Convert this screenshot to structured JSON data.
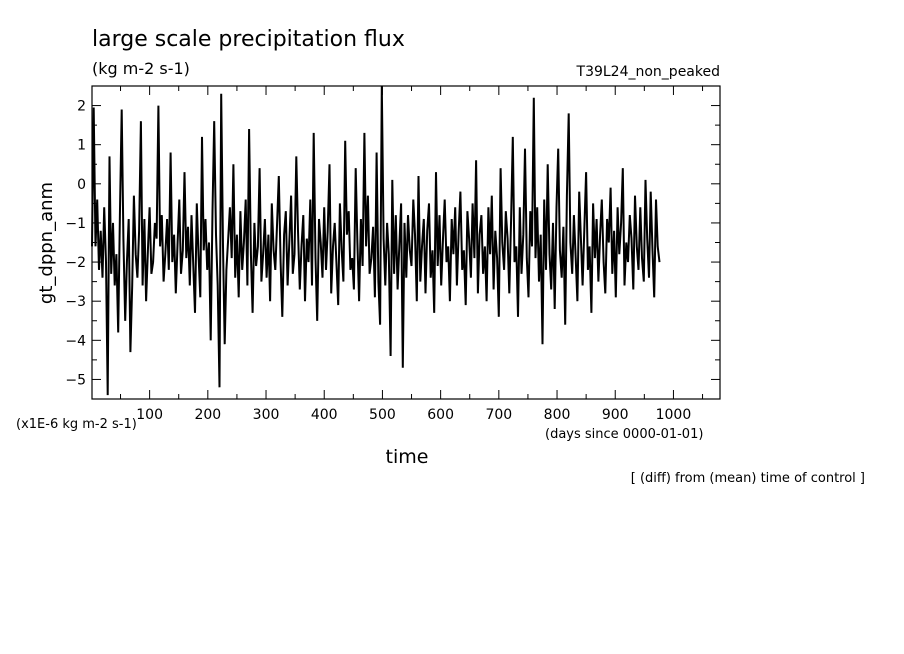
{
  "chart_data": {
    "type": "line",
    "title": "large scale precipitation flux",
    "subtitle": "(kg m-2 s-1)",
    "run_label": "T39L24_non_peaked",
    "ylabel": "gt_dppn_anm",
    "y_unit_note": "(x1E-6 kg m-2 s-1)",
    "xlabel": "time",
    "x_unit_note": "(days since 0000-01-01)",
    "footnote": "[ (diff) from (mean) time of control ]",
    "xlim": [
      1,
      1080
    ],
    "ylim": [
      -5.5,
      2.5
    ],
    "x_ticks": [
      100,
      200,
      300,
      400,
      500,
      600,
      700,
      800,
      900,
      1000
    ],
    "y_ticks": [
      2,
      1,
      0,
      -1,
      -2,
      -3,
      -4,
      -5
    ],
    "grid": false,
    "series": [
      {
        "x_start": 1,
        "x_step": 3,
        "values": [
          -1.6,
          1.95,
          -1.6,
          -0.4,
          -2.2,
          -1.2,
          -2.4,
          -0.6,
          -2.0,
          -5.4,
          0.7,
          -2.3,
          -1.0,
          -2.6,
          -1.8,
          -3.8,
          -0.8,
          1.9,
          -1.4,
          -3.5,
          -2.0,
          -0.9,
          -4.3,
          -2.6,
          -0.3,
          -1.8,
          -2.4,
          -1.2,
          1.6,
          -2.6,
          -0.9,
          -3.0,
          -1.7,
          -0.6,
          -2.3,
          -2.0,
          -1.0,
          -1.4,
          2.0,
          -1.6,
          -0.8,
          -2.5,
          -1.8,
          -0.9,
          -2.2,
          0.8,
          -2.0,
          -1.3,
          -2.8,
          -1.5,
          -0.4,
          -2.3,
          -1.7,
          0.3,
          -1.9,
          -1.1,
          -2.6,
          -0.8,
          -2.1,
          -3.3,
          -0.5,
          -1.8,
          -2.9,
          1.2,
          -1.7,
          -0.9,
          -2.2,
          -1.5,
          -4.0,
          -0.7,
          1.6,
          -1.3,
          -2.6,
          -5.2,
          2.3,
          -1.6,
          -4.1,
          -2.2,
          -1.4,
          -0.6,
          -1.9,
          0.5,
          -2.4,
          -1.3,
          -2.9,
          -0.7,
          -2.2,
          -1.5,
          -0.4,
          -2.6,
          1.4,
          -1.8,
          -3.3,
          -1.0,
          -2.1,
          -1.6,
          0.4,
          -2.5,
          -1.8,
          -0.9,
          -2.4,
          -1.3,
          -3.0,
          -0.5,
          -1.7,
          -2.2,
          -1.0,
          0.2,
          -2.0,
          -3.4,
          -1.3,
          -0.7,
          -2.6,
          -1.5,
          -0.3,
          -2.3,
          -1.8,
          0.7,
          -1.2,
          -2.7,
          -1.6,
          -0.8,
          -3.0,
          -1.4,
          -2.0,
          -0.4,
          -2.6,
          1.3,
          -1.9,
          -3.5,
          -0.9,
          -1.5,
          -2.4,
          -0.6,
          -2.2,
          -1.2,
          0.5,
          -2.8,
          -1.6,
          -1.0,
          -2.0,
          -3.1,
          -0.5,
          -1.7,
          -2.5,
          1.1,
          -1.3,
          -0.7,
          -2.2,
          -1.9,
          -2.7,
          0.4,
          -1.5,
          -3.0,
          -0.9,
          -2.1,
          1.3,
          -1.6,
          -0.3,
          -2.3,
          -1.9,
          -1.1,
          -2.9,
          0.8,
          -2.5,
          -3.6,
          2.5,
          -1.4,
          -2.6,
          -1.0,
          -1.8,
          -4.4,
          0.1,
          -2.3,
          -0.8,
          -2.7,
          -1.6,
          -0.5,
          -4.7,
          -1.0,
          -2.4,
          -0.8,
          -1.7,
          -2.1,
          -0.4,
          -1.3,
          -3.0,
          0.2,
          -2.5,
          -1.6,
          -0.9,
          -2.8,
          -1.2,
          -0.5,
          -2.4,
          -1.7,
          -3.3,
          0.3,
          -2.1,
          -0.8,
          -2.6,
          -1.4,
          -0.4,
          -2.0,
          -1.6,
          -3.0,
          -0.9,
          -1.8,
          -0.6,
          -2.6,
          -1.2,
          -0.2,
          -2.2,
          -1.7,
          -3.1,
          -0.7,
          -1.4,
          -2.4,
          -0.5,
          -1.9,
          0.6,
          -2.8,
          -1.3,
          -0.8,
          -2.3,
          -1.6,
          -3.0,
          -0.6,
          -1.8,
          -0.3,
          -2.7,
          -1.2,
          -1.9,
          -3.4,
          0.4,
          -1.5,
          -2.2,
          -0.7,
          -1.4,
          -2.8,
          -0.9,
          1.2,
          -2.0,
          -1.6,
          -3.4,
          -0.6,
          -2.3,
          -1.3,
          0.9,
          -1.9,
          -2.9,
          -0.7,
          -1.6,
          2.2,
          -1.9,
          -0.6,
          -2.5,
          -1.3,
          -4.1,
          -0.4,
          -2.2,
          0.5,
          -1.8,
          -2.7,
          -1.0,
          -3.2,
          -0.6,
          0.9,
          -1.7,
          -2.4,
          -1.1,
          -3.6,
          -0.3,
          1.8,
          -1.5,
          -2.3,
          -0.8,
          -1.9,
          -3.0,
          -0.2,
          -1.4,
          -2.6,
          -1.1,
          0.3,
          -2.2,
          -1.6,
          -3.3,
          -0.5,
          -1.9,
          -0.9,
          -2.5,
          -1.3,
          -0.4,
          -2.0,
          -2.8,
          -0.9,
          -1.5,
          -0.1,
          -2.3,
          -1.2,
          -2.9,
          -0.6,
          -1.8,
          -1.0,
          0.4,
          -2.6,
          -1.5,
          -2.0,
          -0.8,
          -1.4,
          -2.7,
          -0.3,
          -1.6,
          -2.2,
          -0.6,
          -1.9,
          -2.5,
          0.1,
          -1.4,
          -2.4,
          -0.2,
          -1.7,
          -2.9,
          -0.4,
          -1.6,
          -2.0
        ]
      }
    ]
  }
}
